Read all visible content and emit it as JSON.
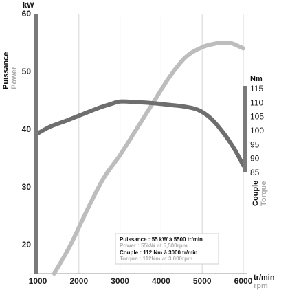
{
  "chart_data": {
    "type": "line",
    "x_axis": {
      "label_top": "tr/min",
      "label_bottom": "rpm",
      "ticks": [
        1000,
        2000,
        3000,
        4000,
        5000,
        6000
      ],
      "range": [
        1000,
        6000
      ]
    },
    "y_left": {
      "label_top": "kW",
      "label_primary": "Puissance",
      "label_secondary": "Power",
      "ticks": [
        20,
        30,
        40,
        50,
        60
      ],
      "range": [
        15,
        60
      ]
    },
    "y_right": {
      "label_top": "Nm",
      "label_primary": "Couple",
      "label_secondary": "Torque",
      "ticks": [
        85,
        90,
        95,
        100,
        105,
        110,
        115
      ],
      "range": [
        85,
        115
      ]
    },
    "grid": {
      "vertical": true,
      "horizontal": false
    },
    "series": [
      {
        "key": "power",
        "axis": "left",
        "color": "#bdbdbd",
        "x": [
          1400,
          1800,
          2200,
          2600,
          3000,
          3400,
          3800,
          4200,
          4600,
          5000,
          5300,
          5500,
          5700,
          5850,
          6000
        ],
        "y": [
          15,
          20,
          26,
          31.5,
          35.5,
          40,
          44.5,
          49,
          52.5,
          54.2,
          54.8,
          55,
          54.9,
          54.5,
          54
        ]
      },
      {
        "key": "torque",
        "axis": "right",
        "color": "#6e6e6e",
        "x": [
          1000,
          1300,
          1700,
          2100,
          2500,
          2800,
          3000,
          3400,
          3800,
          4200,
          4600,
          4900,
          5200,
          5500,
          5800,
          6000
        ],
        "y": [
          99,
          101.4,
          103.6,
          105.9,
          108.2,
          109.6,
          110.4,
          110.2,
          109.8,
          109.2,
          108.5,
          107.4,
          104.5,
          99.5,
          93,
          87.5
        ]
      }
    ],
    "legend": {
      "position": "bottom-right",
      "lines": [
        "Puissance : 55 kW à 5500 tr/min",
        "Power : 55kW at 5,500rpm",
        "Couple : 112 Nm à 3000 tr/min",
        "Torque : 112Nm at 3,000rpm"
      ]
    }
  }
}
